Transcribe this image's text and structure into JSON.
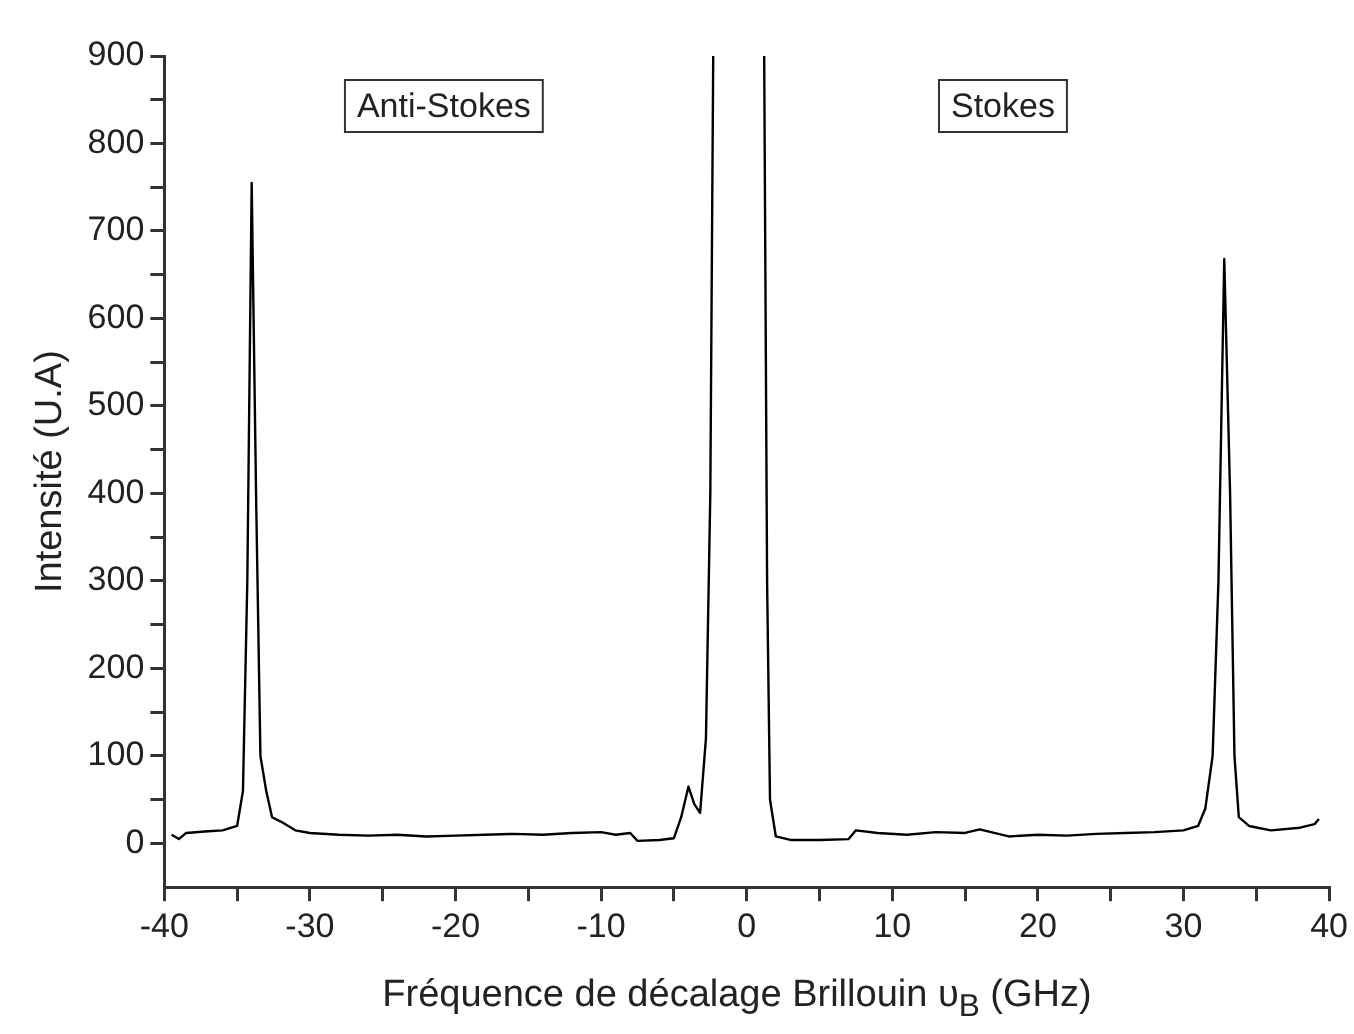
{
  "chart_data": {
    "type": "line",
    "xlabel": "Fréquence de décalage Brillouin υ$_{B}$ (GHz)",
    "ylabel": "Intensité (U.A)",
    "annotations": [
      "Anti-Stokes",
      "Stokes"
    ],
    "xlim": [
      -40,
      40
    ],
    "ylim": [
      -50,
      900
    ],
    "xticks": [
      -40,
      {
        "value": -35,
        "label": null
      },
      -30,
      {
        "value": -25,
        "label": null
      },
      -20,
      {
        "value": -15,
        "label": null
      },
      -10,
      {
        "value": -5,
        "label": null
      },
      0,
      {
        "value": 5,
        "label": null
      },
      10,
      {
        "value": 15,
        "label": null
      },
      20,
      {
        "value": 25,
        "label": null
      },
      30,
      {
        "value": 35,
        "label": null
      },
      40
    ],
    "yticks": [
      0,
      {
        "value": 50,
        "label": null
      },
      100,
      {
        "value": 150,
        "label": null
      },
      200,
      {
        "value": 250,
        "label": null
      },
      300,
      {
        "value": 350,
        "label": null
      },
      400,
      {
        "value": 450,
        "label": null
      },
      500,
      {
        "value": 550,
        "label": null
      },
      600,
      {
        "value": 650,
        "label": null
      },
      700,
      {
        "value": 750,
        "label": null
      },
      800,
      {
        "value": 850,
        "label": null
      },
      900
    ],
    "grid": false,
    "legend": false,
    "marker": "none",
    "line_style": "solid",
    "series": [
      {
        "color": "#000000",
        "x": [
          -39.5,
          -39,
          -38.5,
          -37,
          -36,
          -35,
          -34.6,
          -34.3,
          -34,
          -33.7,
          -33.4,
          -33,
          -32.6,
          -32,
          -31,
          -30,
          -28,
          -26,
          -24,
          -22,
          -20,
          -18,
          -16,
          -14,
          -12,
          -10,
          -9,
          -8,
          -7.5,
          -6,
          -5,
          -4.5,
          -4,
          -3.6,
          -3.2,
          -2.8,
          -2.5,
          -2.3,
          -0.5,
          1.2,
          1.4,
          1.6,
          2,
          3,
          5,
          7,
          7.5,
          9,
          11,
          13,
          15,
          16,
          18,
          20,
          22,
          24,
          26,
          28,
          30,
          31,
          31.5,
          32,
          32.4,
          32.8,
          33.2,
          33.5,
          33.8,
          34.5,
          36,
          38,
          39,
          39.3
        ],
        "values": [
          10,
          5,
          12,
          14,
          15,
          20,
          60,
          300,
          755,
          400,
          100,
          60,
          30,
          25,
          15,
          12,
          10,
          9,
          10,
          8,
          9,
          10,
          11,
          10,
          12,
          13,
          10,
          12,
          3,
          4,
          6,
          30,
          65,
          45,
          35,
          120,
          400,
          900,
          null,
          900,
          300,
          50,
          8,
          4,
          4,
          5,
          15,
          12,
          10,
          13,
          12,
          16,
          8,
          10,
          9,
          11,
          12,
          13,
          15,
          20,
          40,
          100,
          300,
          668,
          400,
          100,
          30,
          20,
          15,
          18,
          22,
          28
        ]
      }
    ]
  }
}
